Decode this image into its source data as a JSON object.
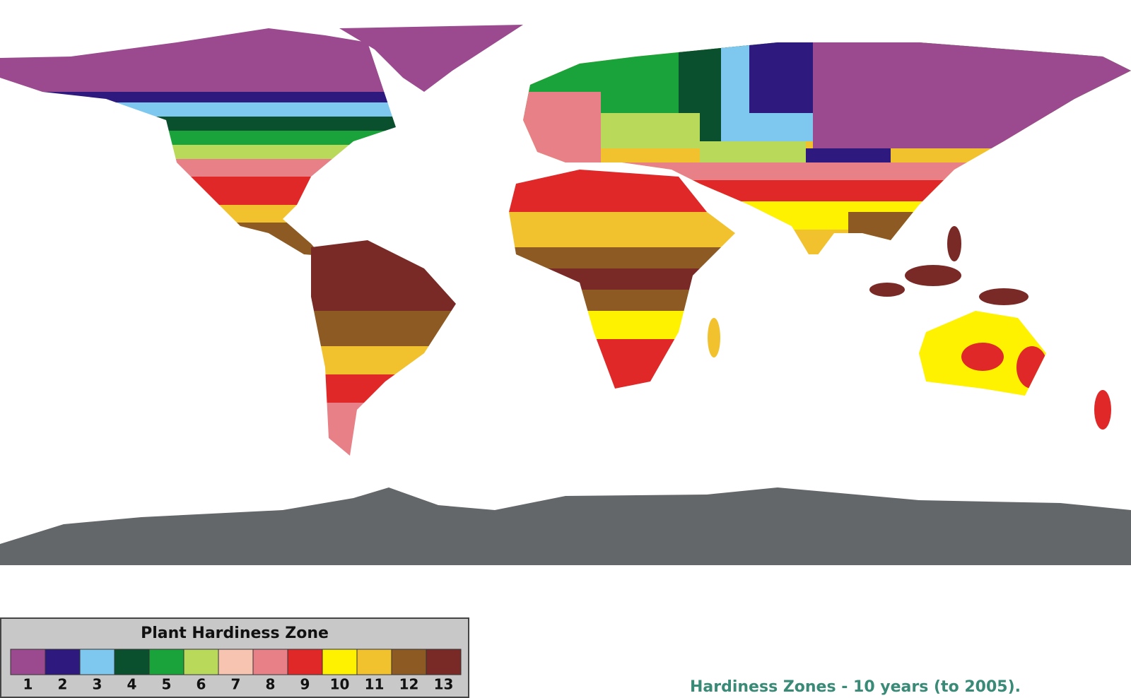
{
  "legend": {
    "title": "Plant Hardiness Zone",
    "zones": [
      {
        "label": "1",
        "color": "#9c4a8f"
      },
      {
        "label": "2",
        "color": "#2e1a7e"
      },
      {
        "label": "3",
        "color": "#7ec8f0"
      },
      {
        "label": "4",
        "color": "#0a4f2e"
      },
      {
        "label": "5",
        "color": "#1aa33a"
      },
      {
        "label": "6",
        "color": "#b8d95a"
      },
      {
        "label": "7",
        "color": "#f6c4b0"
      },
      {
        "label": "8",
        "color": "#e88088"
      },
      {
        "label": "9",
        "color": "#e02828"
      },
      {
        "label": "10",
        "color": "#fff200"
      },
      {
        "label": "11",
        "color": "#f2c12e"
      },
      {
        "label": "12",
        "color": "#8c5a22"
      },
      {
        "label": "13",
        "color": "#7a2a26"
      }
    ]
  },
  "caption": "Hardiness Zones - 10 years (to 2005)."
}
